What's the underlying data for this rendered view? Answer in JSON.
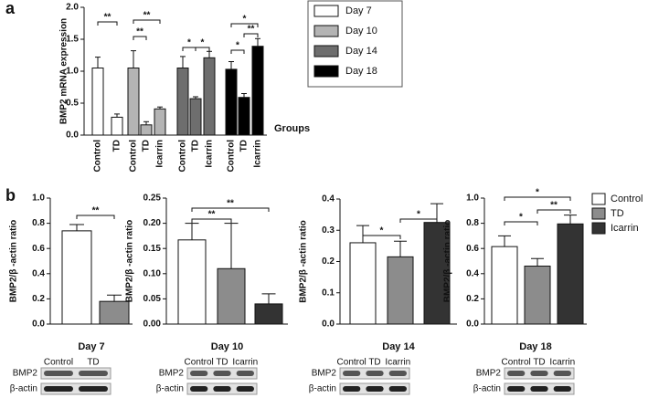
{
  "panel_labels": [
    "a",
    "b"
  ],
  "chart_data": [
    {
      "type": "bar",
      "ylabel": "BMP2 mRNA expression",
      "xlabel": "Groups",
      "ylim": [
        0,
        2
      ],
      "yticks": [
        {
          "value": 0,
          "label": "0.0"
        },
        {
          "value": 0.5,
          "label": "0.5"
        },
        {
          "value": 1,
          "label": "1.0"
        },
        {
          "value": 1.5,
          "label": "1.5"
        },
        {
          "value": 2,
          "label": "2.0"
        }
      ],
      "groups": [
        {
          "name": "Day 7",
          "color": "#ffffff",
          "categories": [
            "Control",
            "TD"
          ],
          "values": [
            1.05,
            0.28
          ],
          "errors": [
            0.17,
            0.05
          ]
        },
        {
          "name": "Day 10",
          "color": "#b4b4b4",
          "categories": [
            "Control",
            "TD",
            "Icarrin"
          ],
          "values": [
            1.05,
            0.16,
            0.41
          ],
          "errors": [
            0.27,
            0.05,
            0.03
          ]
        },
        {
          "name": "Day 14",
          "color": "#6e6e6e",
          "categories": [
            "Control",
            "TD",
            "Icarrin"
          ],
          "values": [
            1.05,
            0.57,
            1.21
          ],
          "errors": [
            0.18,
            0.03,
            0.1
          ]
        },
        {
          "name": "Day 18",
          "color": "#000000",
          "categories": [
            "Control",
            "TD",
            "Icarrin"
          ],
          "values": [
            1.03,
            0.59,
            1.39
          ],
          "errors": [
            0.12,
            0.06,
            0.12
          ]
        }
      ],
      "annotations": [
        "**",
        "**",
        "**",
        "*",
        "*",
        "*",
        "**",
        "*"
      ]
    },
    {
      "type": "bar",
      "title": "Day 7",
      "ylabel": "BMP2/β -actin ratio",
      "ylim": [
        0,
        1
      ],
      "yticks": [
        {
          "value": 0,
          "label": "0.0"
        },
        {
          "value": 0.2,
          "label": "0.2"
        },
        {
          "value": 0.4,
          "label": "0.4"
        },
        {
          "value": 0.6,
          "label": "0.6"
        },
        {
          "value": 0.8,
          "label": "0.8"
        },
        {
          "value": 1,
          "label": "1.0"
        }
      ],
      "categories": [
        "Control",
        "TD"
      ],
      "values": [
        0.74,
        0.18
      ],
      "errors": [
        0.05,
        0.05
      ],
      "colors": [
        "#ffffff",
        "#8c8c8c"
      ],
      "annotations": [
        "**"
      ],
      "blot": {
        "lanes": [
          "Control",
          "TD"
        ],
        "rows": [
          "BMP2",
          "β-actin"
        ]
      }
    },
    {
      "type": "bar",
      "title": "Day 10",
      "ylabel": "BMP2/β -actin ratio",
      "ylim": [
        0,
        0.25
      ],
      "yticks": [
        {
          "value": 0,
          "label": "0.00"
        },
        {
          "value": 0.05,
          "label": "0.05"
        },
        {
          "value": 0.1,
          "label": "0.10"
        },
        {
          "value": 0.15,
          "label": "0.15"
        },
        {
          "value": 0.2,
          "label": "0.20"
        },
        {
          "value": 0.25,
          "label": "0.25"
        }
      ],
      "categories": [
        "Control",
        "TD",
        "Icarrin"
      ],
      "values": [
        0.167,
        0.11,
        0.04
      ],
      "errors": [
        0.033,
        0.09,
        0.02
      ],
      "colors": [
        "#ffffff",
        "#8c8c8c",
        "#333333"
      ],
      "annotations": [
        "**",
        "**"
      ],
      "blot": {
        "lanes": [
          "Control",
          "TD",
          "Icarrin"
        ],
        "rows": [
          "BMP2",
          "β-actin"
        ]
      }
    },
    {
      "type": "bar",
      "title": "Day 14",
      "ylabel": "BMP2/β -actin ratio",
      "ylim": [
        0,
        0.4
      ],
      "yticks": [
        {
          "value": 0,
          "label": "0.0"
        },
        {
          "value": 0.1,
          "label": "0.1"
        },
        {
          "value": 0.2,
          "label": "0.2"
        },
        {
          "value": 0.3,
          "label": "0.3"
        },
        {
          "value": 0.4,
          "label": "0.4"
        }
      ],
      "categories": [
        "Control",
        "TD",
        "Icarrin"
      ],
      "values": [
        0.26,
        0.215,
        0.325
      ],
      "errors": [
        0.055,
        0.05,
        0.06
      ],
      "colors": [
        "#ffffff",
        "#8c8c8c",
        "#333333"
      ],
      "annotations": [
        "*",
        "*"
      ],
      "blot": {
        "lanes": [
          "Control",
          "TD",
          "Icarrin"
        ],
        "rows": [
          "BMP2",
          "β-actin"
        ]
      }
    },
    {
      "type": "bar",
      "title": "Day 18",
      "ylabel": "BMP2/β -actin ratio",
      "ylim": [
        0,
        1
      ],
      "yticks": [
        {
          "value": 0,
          "label": "0.0"
        },
        {
          "value": 0.2,
          "label": "0.2"
        },
        {
          "value": 0.4,
          "label": "0.4"
        },
        {
          "value": 0.6,
          "label": "0.6"
        },
        {
          "value": 0.8,
          "label": "0.8"
        },
        {
          "value": 1,
          "label": "1.0"
        }
      ],
      "categories": [
        "Control",
        "TD",
        "Icarrin"
      ],
      "values": [
        0.615,
        0.46,
        0.795
      ],
      "errors": [
        0.085,
        0.06,
        0.07
      ],
      "colors": [
        "#ffffff",
        "#8c8c8c",
        "#333333"
      ],
      "annotations": [
        "*",
        "*",
        "**"
      ],
      "legend": true,
      "blot": {
        "lanes": [
          "Control",
          "TD",
          "Icarrin"
        ],
        "rows": [
          "BMP2",
          "β-actin"
        ]
      }
    }
  ]
}
